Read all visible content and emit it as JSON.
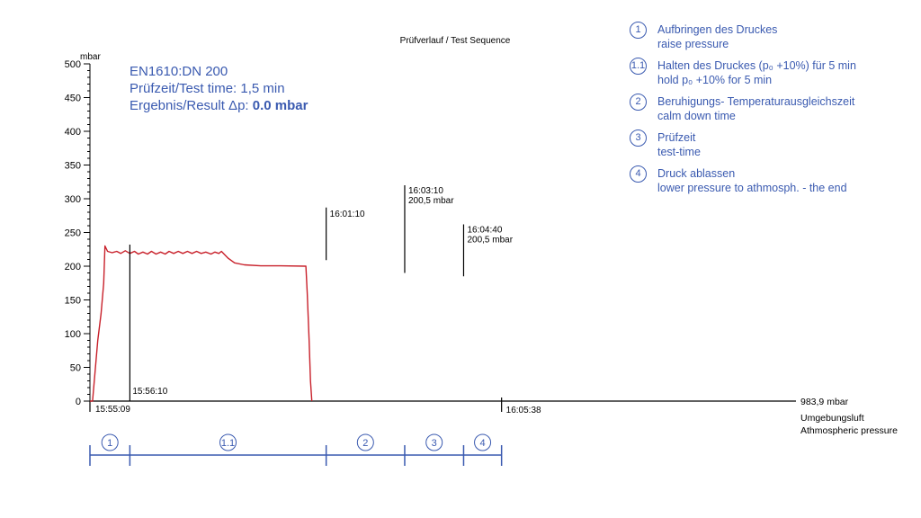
{
  "chart_data": {
    "type": "line",
    "title": "Prüfverlauf / Test Sequence",
    "ylabel": "mbar",
    "ylim": [
      0,
      500
    ],
    "yticks": [
      0,
      50,
      100,
      150,
      200,
      250,
      300,
      350,
      400,
      450,
      500
    ],
    "x_unit": "time (hh:mm:ss)",
    "series": [
      {
        "color": "#c8202a",
        "points": [
          [
            "15:55:09",
            0
          ],
          [
            "15:55:13",
            0
          ],
          [
            "15:55:17",
            45
          ],
          [
            "15:55:21",
            90
          ],
          [
            "15:55:26",
            130
          ],
          [
            "15:55:30",
            175
          ],
          [
            "15:55:32",
            230
          ],
          [
            "15:55:36",
            222
          ],
          [
            "15:55:43",
            220
          ],
          [
            "15:55:50",
            222
          ],
          [
            "15:55:56",
            219
          ],
          [
            "15:56:03",
            223
          ],
          [
            "15:56:10",
            219
          ],
          [
            "15:56:17",
            222
          ],
          [
            "15:56:23",
            218
          ],
          [
            "15:56:30",
            221
          ],
          [
            "15:56:37",
            218
          ],
          [
            "15:56:43",
            222
          ],
          [
            "15:56:50",
            218
          ],
          [
            "15:56:57",
            221
          ],
          [
            "15:57:04",
            218
          ],
          [
            "15:57:10",
            222
          ],
          [
            "15:57:17",
            219
          ],
          [
            "15:57:24",
            222
          ],
          [
            "15:57:31",
            219
          ],
          [
            "15:57:38",
            222
          ],
          [
            "15:57:45",
            219
          ],
          [
            "15:57:52",
            222
          ],
          [
            "15:57:59",
            219
          ],
          [
            "15:58:06",
            221
          ],
          [
            "15:58:14",
            218
          ],
          [
            "15:58:20",
            221
          ],
          [
            "15:58:26",
            219
          ],
          [
            "15:58:30",
            222
          ],
          [
            "15:58:40",
            212
          ],
          [
            "15:58:50",
            205
          ],
          [
            "15:59:05",
            202
          ],
          [
            "15:59:30",
            200.5
          ],
          [
            "16:00:00",
            200.5
          ],
          [
            "16:00:39",
            200
          ],
          [
            "16:00:41",
            160
          ],
          [
            "16:00:44",
            90
          ],
          [
            "16:00:46",
            30
          ],
          [
            "16:00:48",
            0
          ]
        ]
      }
    ],
    "markers": [
      {
        "time": "15:56:10",
        "label": "15:56:10",
        "value": null
      },
      {
        "time": "16:01:10",
        "label": "16:01:10",
        "value": null
      },
      {
        "time": "16:03:10",
        "label": "16:03:10",
        "value": "200,5 mbar"
      },
      {
        "time": "16:04:40",
        "label": "16:04:40",
        "value": "200,5 mbar"
      }
    ],
    "x_start_label": "15:55:09",
    "x_end_label": "16:05:38",
    "axis_end_label": "983,9 mbar",
    "ambient_label_1": "Umgebungsluft",
    "ambient_label_2": "Athmospheric pressure",
    "phases": [
      "1",
      "1.1",
      "2",
      "3",
      "4"
    ]
  },
  "info": {
    "line1": "EN1610:DN 200",
    "line2": "Prüfzeit/Test time: 1,5 min",
    "line3_prefix": "Ergebnis/Result Δp: ",
    "line3_value": "0.0 mbar"
  },
  "legend": [
    {
      "num": "1",
      "line1": "Aufbringen des Druckes",
      "line2": "raise pressure"
    },
    {
      "num": "1.1",
      "line1": "Halten des Druckes (p₀ +10%) für 5 min",
      "line2": "hold p₀ +10% for 5 min"
    },
    {
      "num": "2",
      "line1": "Beruhigungs- Temperaturausgleichszeit",
      "line2": "calm down time"
    },
    {
      "num": "3",
      "line1": "Prüfzeit",
      "line2": "test-time"
    },
    {
      "num": "4",
      "line1": "Druck ablassen",
      "line2": "lower pressure to athmosph. - the end"
    }
  ],
  "colors": {
    "curve": "#c8202a",
    "accent": "#3a5ab0",
    "axis": "#000000"
  }
}
